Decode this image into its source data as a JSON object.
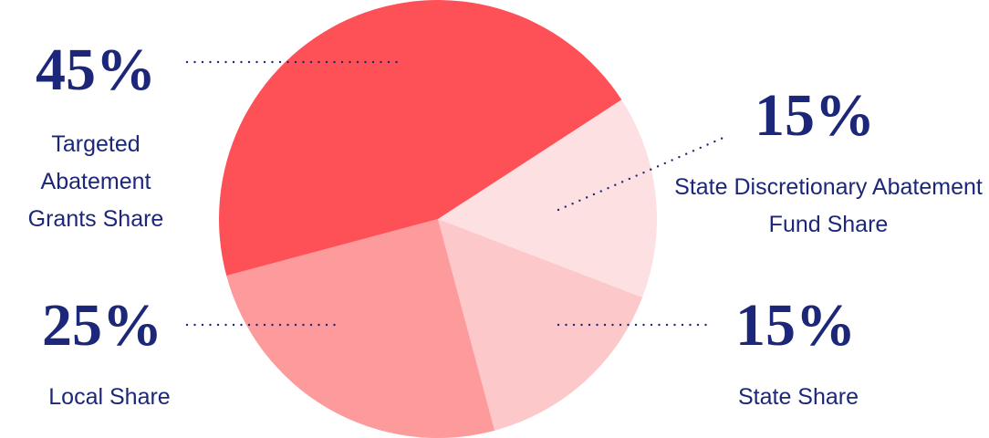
{
  "chart_data": {
    "type": "pie",
    "categories": [
      "State Discretionary Abatement Fund Share",
      "State Share",
      "Local Share",
      "Targeted Abatement Grants Share"
    ],
    "values": [
      15,
      15,
      25,
      45
    ],
    "value_labels": [
      "15%",
      "15%",
      "25%",
      "45%"
    ],
    "colors": [
      "#fde0e1",
      "#fcc8ca",
      "#fd9a9c",
      "#fe5157"
    ]
  }
}
